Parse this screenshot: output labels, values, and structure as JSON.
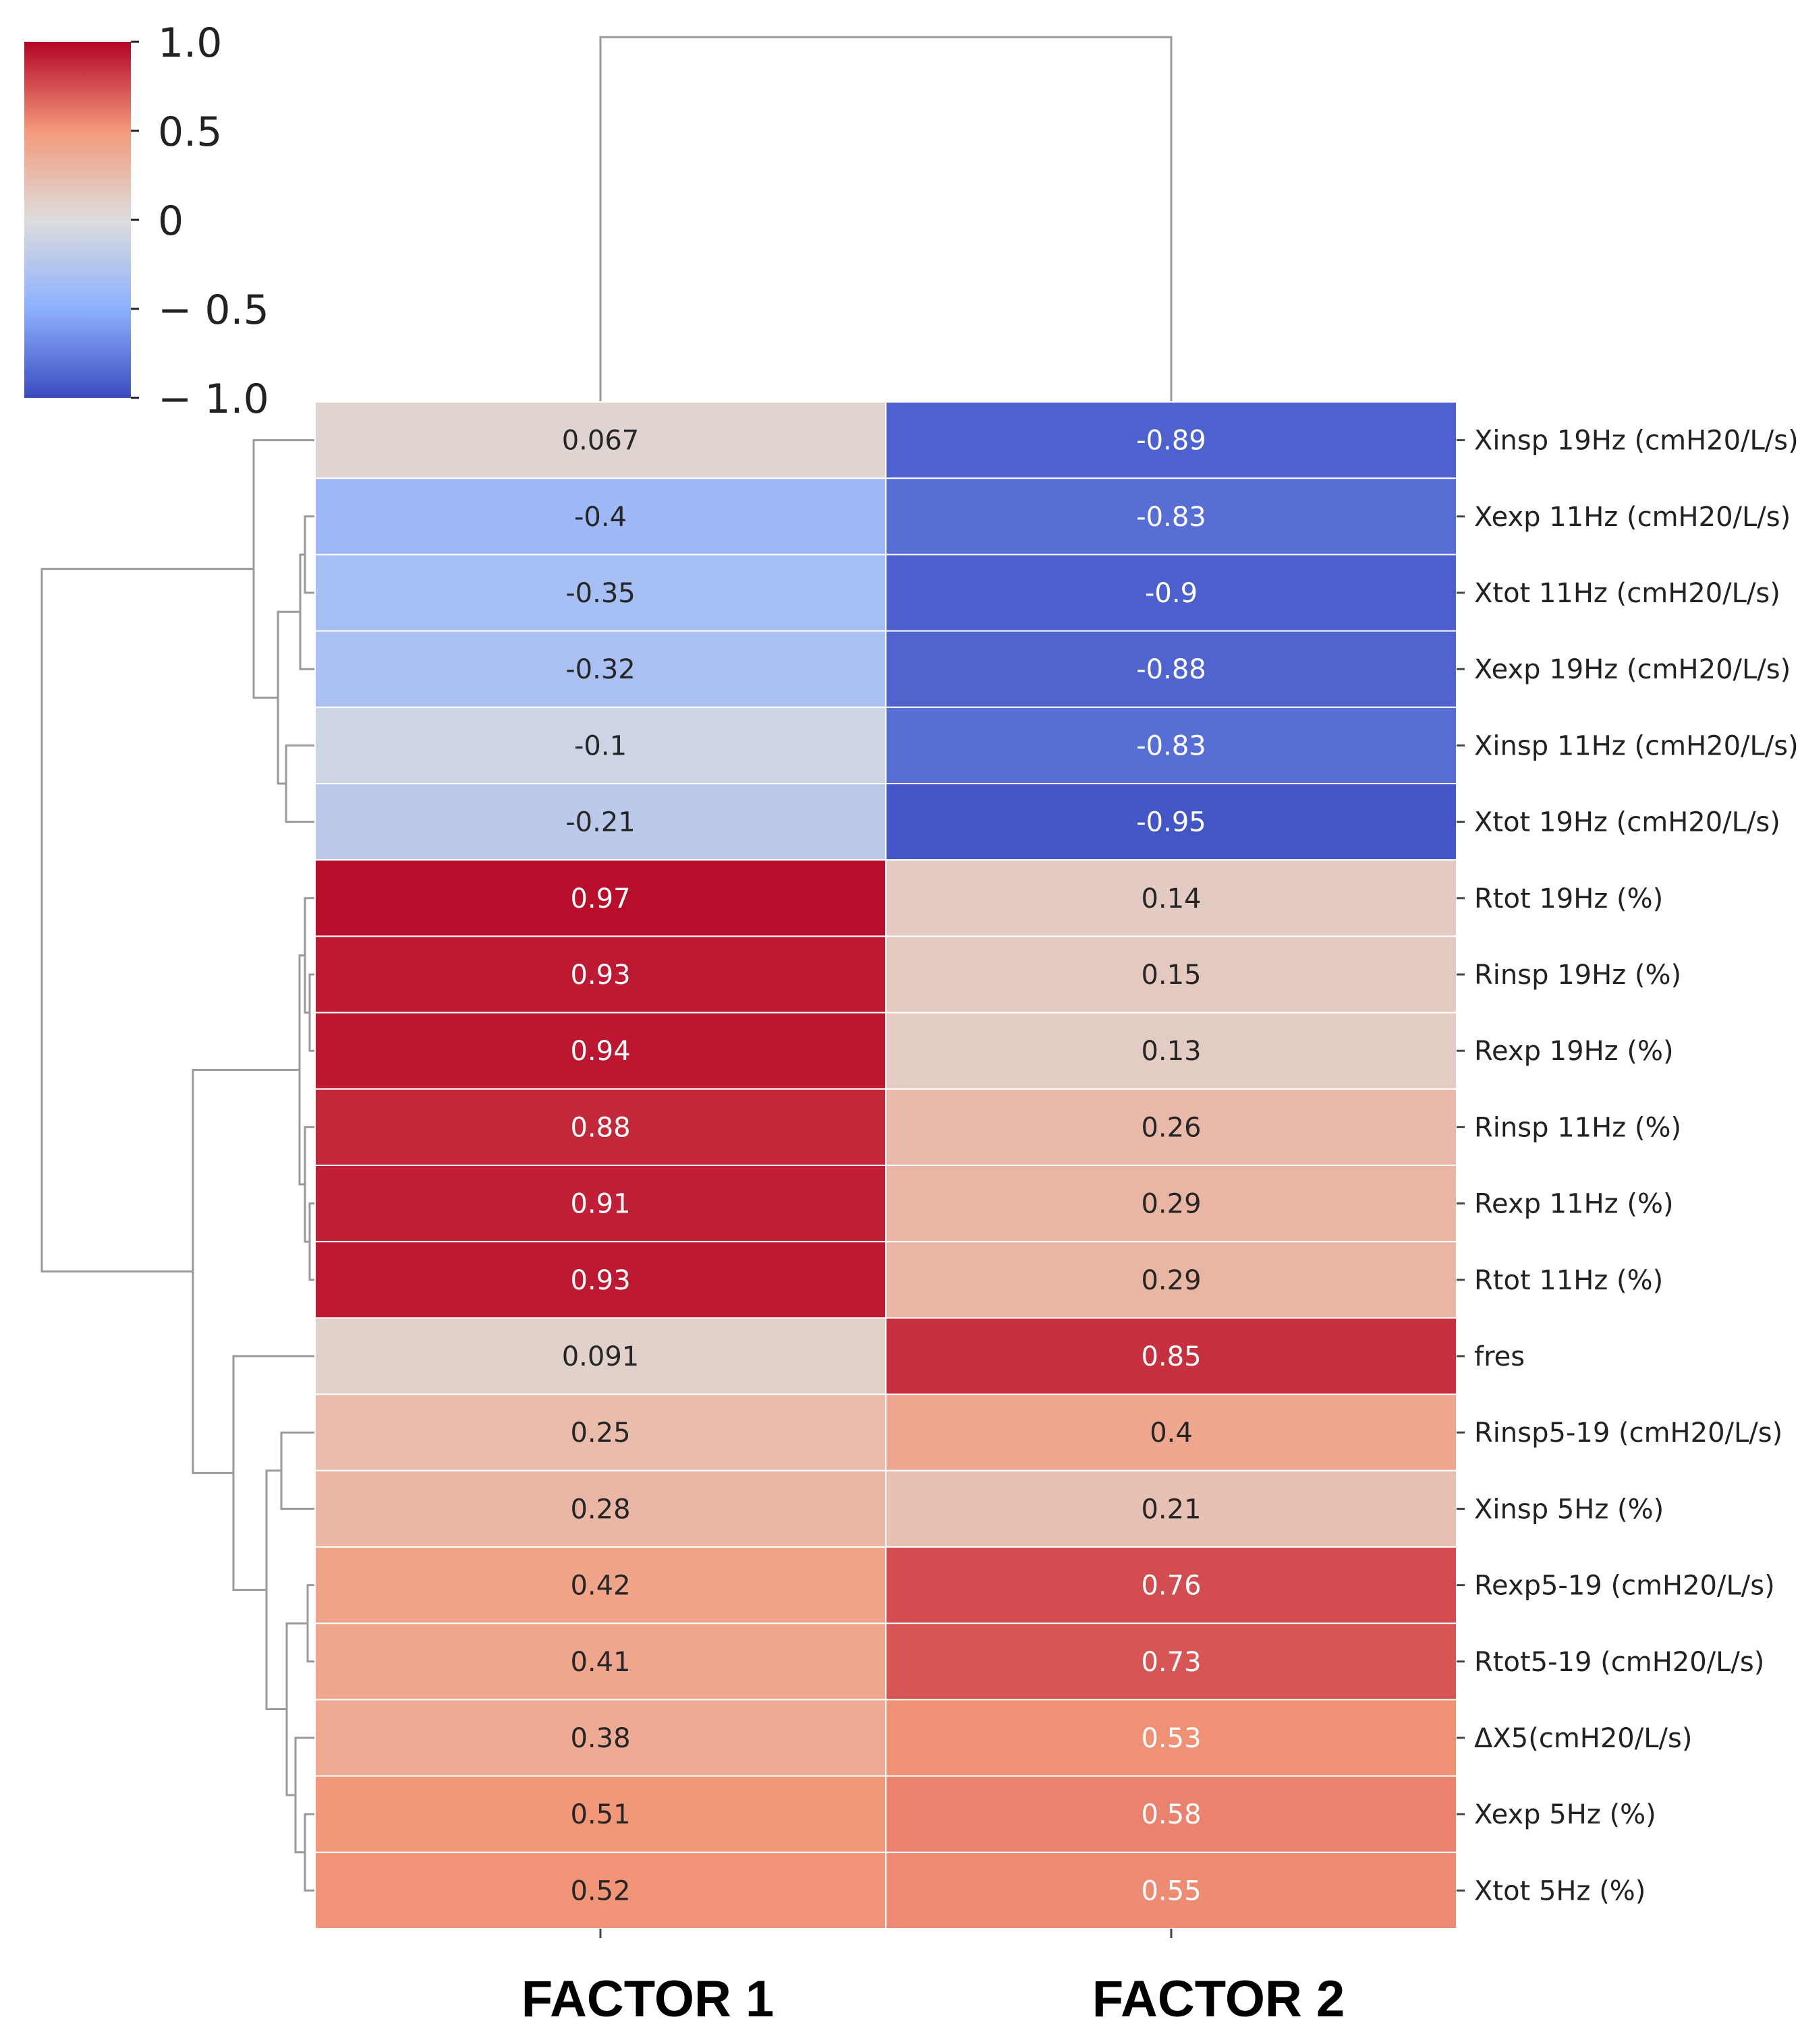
{
  "chart_data": {
    "type": "heatmap",
    "title": "",
    "columns": [
      "FACTOR 1",
      "FACTOR 2"
    ],
    "rows": [
      "Xinsp 19Hz (cmH20/L/s)",
      "Xexp 11Hz (cmH20/L/s)",
      "Xtot 11Hz (cmH20/L/s)",
      "Xexp 19Hz (cmH20/L/s)",
      "Xinsp 11Hz (cmH20/L/s)",
      "Xtot 19Hz (cmH20/L/s)",
      "Rtot 19Hz (%)",
      "Rinsp 19Hz (%)",
      "Rexp 19Hz (%)",
      "Rinsp 11Hz (%)",
      "Rexp 11Hz (%)",
      "Rtot 11Hz (%)",
      "fres",
      "Rinsp5-19  (cmH20/L/s)",
      "Xinsp 5Hz (%)",
      "Rexp5-19  (cmH20/L/s)",
      "Rtot5-19  (cmH20/L/s)",
      "ΔX5(cmH20/L/s)",
      "Xexp 5Hz (%)",
      "Xtot 5Hz (%)"
    ],
    "values": [
      [
        0.067,
        -0.89
      ],
      [
        -0.4,
        -0.83
      ],
      [
        -0.35,
        -0.9
      ],
      [
        -0.32,
        -0.88
      ],
      [
        -0.1,
        -0.83
      ],
      [
        -0.21,
        -0.95
      ],
      [
        0.97,
        0.14
      ],
      [
        0.93,
        0.15
      ],
      [
        0.94,
        0.13
      ],
      [
        0.88,
        0.26
      ],
      [
        0.91,
        0.29
      ],
      [
        0.93,
        0.29
      ],
      [
        0.091,
        0.85
      ],
      [
        0.25,
        0.4
      ],
      [
        0.28,
        0.21
      ],
      [
        0.42,
        0.76
      ],
      [
        0.41,
        0.73
      ],
      [
        0.38,
        0.53
      ],
      [
        0.51,
        0.58
      ],
      [
        0.52,
        0.55
      ]
    ],
    "value_labels": [
      [
        "0.067",
        "-0.89"
      ],
      [
        "-0.4",
        "-0.83"
      ],
      [
        "-0.35",
        "-0.9"
      ],
      [
        "-0.32",
        "-0.88"
      ],
      [
        "-0.1",
        "-0.83"
      ],
      [
        "-0.21",
        "-0.95"
      ],
      [
        "0.97",
        "0.14"
      ],
      [
        "0.93",
        "0.15"
      ],
      [
        "0.94",
        "0.13"
      ],
      [
        "0.88",
        "0.26"
      ],
      [
        "0.91",
        "0.29"
      ],
      [
        "0.93",
        "0.29"
      ],
      [
        "0.091",
        "0.85"
      ],
      [
        "0.25",
        "0.4"
      ],
      [
        "0.28",
        "0.21"
      ],
      [
        "0.42",
        "0.76"
      ],
      [
        "0.41",
        "0.73"
      ],
      [
        "0.38",
        "0.53"
      ],
      [
        "0.51",
        "0.58"
      ],
      [
        "0.52",
        "0.55"
      ]
    ],
    "colorbar": {
      "colormap": "coolwarm",
      "range": [
        -1.0,
        1.0
      ],
      "ticks": [
        1.0,
        0.5,
        0,
        -0.5,
        -1.0
      ],
      "tick_labels": [
        "1.0",
        "0.5",
        "0",
        "− 0.5",
        "− 1.0"
      ],
      "placement": "top-left"
    },
    "dendrogram": {
      "rows": "left",
      "columns": "top"
    },
    "colors": {
      "low": "#3b4cc0",
      "mid": "#dddddd",
      "high": "#b40426"
    }
  }
}
